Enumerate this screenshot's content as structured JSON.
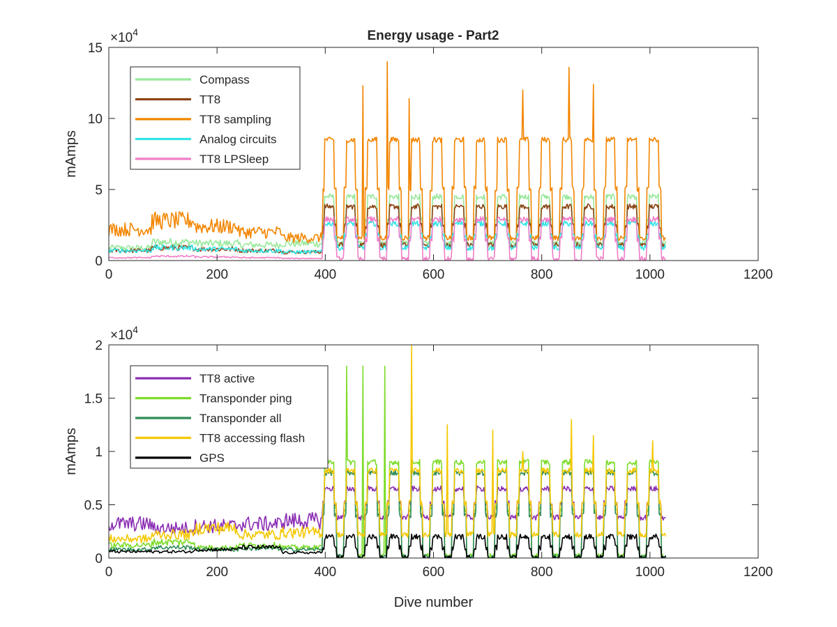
{
  "figure": {
    "title": "Energy usage - Part2"
  },
  "chart_data": [
    {
      "type": "line",
      "title": "Energy usage - Part2",
      "xlabel": "",
      "ylabel": "mAmps",
      "y_exponent": "×10^4",
      "xlim": [
        0,
        1200
      ],
      "ylim": [
        0,
        15
      ],
      "xticks": [
        0,
        200,
        400,
        600,
        800,
        1000,
        1200
      ],
      "yticks": [
        0,
        5,
        10,
        15
      ],
      "ytick_labels": [
        "0",
        "5",
        "10",
        "15"
      ],
      "grid": false,
      "legend_position": "top-left",
      "series": [
        {
          "name": "Compass",
          "color": "#98e89a",
          "phase1": [
            0.9,
            1.3,
            1.2,
            1.1,
            1.2
          ],
          "phase2": {
            "high": 4.5,
            "low": 1.2
          }
        },
        {
          "name": "TT8",
          "color": "#8b4513",
          "phase1": [
            0.7,
            0.9,
            0.8,
            0.7,
            0.6
          ],
          "phase2": {
            "high": 3.8,
            "low": 1.1
          }
        },
        {
          "name": "TT8 sampling",
          "color": "#f28500",
          "phase1": [
            2.2,
            2.8,
            2.4,
            2.0,
            1.6
          ],
          "phase2": {
            "high": 8.5,
            "low": 1.6
          },
          "peaks": [
            {
              "x": 470,
              "y": 12.3
            },
            {
              "x": 515,
              "y": 14.0
            },
            {
              "x": 555,
              "y": 11.4
            },
            {
              "x": 765,
              "y": 12.0
            },
            {
              "x": 850,
              "y": 13.6
            },
            {
              "x": 895,
              "y": 12.4
            }
          ]
        },
        {
          "name": "Analog circuits",
          "color": "#33e6e6",
          "phase1": [
            0.7,
            0.9,
            0.8,
            0.7,
            0.6
          ],
          "phase2": {
            "high": 2.6,
            "low": 0.9
          }
        },
        {
          "name": "TT8 LPSleep",
          "color": "#f07cc6",
          "phase1": [
            0.2,
            0.3,
            0.25,
            0.2,
            0.15
          ],
          "phase2": {
            "high": 2.9,
            "low": 0.1
          }
        }
      ]
    },
    {
      "type": "line",
      "title": "",
      "xlabel": "Dive number",
      "ylabel": "mAmps",
      "y_exponent": "×10^4",
      "xlim": [
        0,
        1200
      ],
      "ylim": [
        0,
        2
      ],
      "xticks": [
        0,
        200,
        400,
        600,
        800,
        1000,
        1200
      ],
      "yticks": [
        0,
        0.5,
        1,
        1.5,
        2
      ],
      "ytick_labels": [
        "0",
        "0.5",
        "1",
        "1.5",
        "2"
      ],
      "grid": false,
      "legend_position": "top-left",
      "series": [
        {
          "name": "TT8 active",
          "color": "#8a2db3",
          "phase1": [
            0.32,
            0.28,
            0.3,
            0.32,
            0.35
          ],
          "phase2": {
            "high": 0.65,
            "low": 0.38
          }
        },
        {
          "name": "Transponder ping",
          "color": "#7ddc2a",
          "phase1": [
            0.12,
            0.15,
            0.1,
            0.12,
            0.1
          ],
          "phase2": {
            "high": 0.9,
            "low": 0.02
          },
          "peaks": [
            {
              "x": 440,
              "y": 1.8
            },
            {
              "x": 470,
              "y": 1.8
            },
            {
              "x": 510,
              "y": 1.8
            }
          ]
        },
        {
          "name": "Transponder all",
          "color": "#2e8b57",
          "phase1": [
            0.08,
            0.1,
            0.08,
            0.09,
            0.08
          ],
          "phase2": {
            "high": 0.8,
            "low": 0.01
          }
        },
        {
          "name": "TT8 accessing flash",
          "color": "#f5c800",
          "phase1": [
            0.18,
            0.22,
            0.28,
            0.22,
            0.24
          ],
          "phase2": {
            "high": 0.82,
            "low": 0.22
          },
          "peaks": [
            {
              "x": 560,
              "y": 2.0
            },
            {
              "x": 625,
              "y": 1.25
            },
            {
              "x": 710,
              "y": 1.2
            },
            {
              "x": 765,
              "y": 1.0
            },
            {
              "x": 855,
              "y": 1.3
            },
            {
              "x": 895,
              "y": 1.15
            },
            {
              "x": 1005,
              "y": 1.1
            }
          ]
        },
        {
          "name": "GPS",
          "color": "#000000",
          "phase1": [
            0.06,
            0.06,
            0.08,
            0.1,
            0.05
          ],
          "phase2": {
            "high": 0.2,
            "low": 0.0
          }
        }
      ]
    }
  ]
}
